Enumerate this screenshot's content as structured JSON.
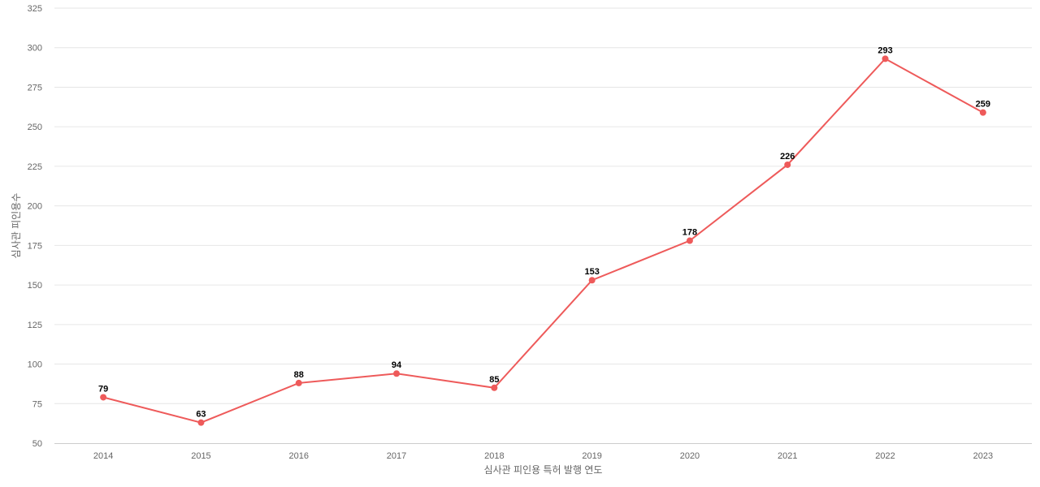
{
  "chart_data": {
    "type": "line",
    "title": "",
    "xlabel": "심사관 피인용 특허 발행 연도",
    "ylabel": "심사관 피인용수",
    "categories": [
      "2014",
      "2015",
      "2016",
      "2017",
      "2018",
      "2019",
      "2020",
      "2021",
      "2022",
      "2023"
    ],
    "values": [
      79,
      63,
      88,
      94,
      85,
      153,
      178,
      226,
      293,
      259
    ],
    "ylim": [
      50,
      325
    ],
    "yticks": [
      50,
      75,
      100,
      125,
      150,
      175,
      200,
      225,
      250,
      275,
      300,
      325
    ],
    "grid": true,
    "legend": "none",
    "data_labels": true,
    "colors": {
      "line": "#ee5a5a",
      "marker": "#ee5a5a",
      "grid": "#e6e6e6",
      "axis": "#cccccc",
      "tick_text": "#666666",
      "label_text": "#000000"
    }
  }
}
